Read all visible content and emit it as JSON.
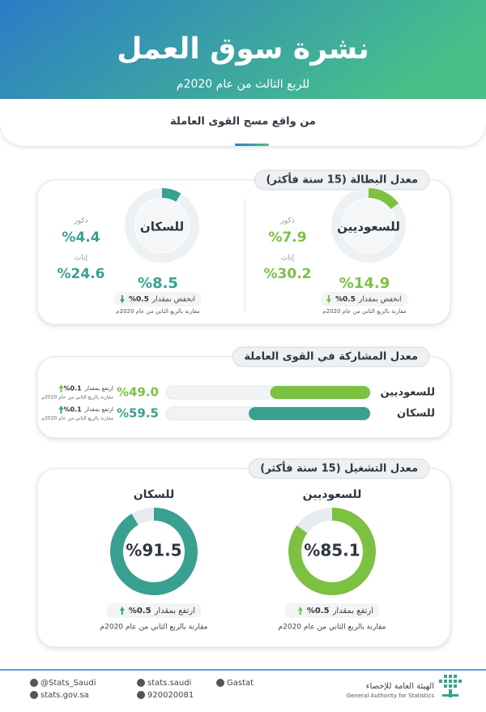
{
  "header": {
    "title": "نشرة سوق العمل",
    "subtitle": "للربع الثالث من عام 2020م",
    "source": "من واقع مسح القوى العاملة"
  },
  "unemployment": {
    "title": "معدل البطالة (15 سنة فأكثر)",
    "xlim": [
      0,
      100
    ],
    "groups": [
      {
        "name": "للسعوديين",
        "color": "#7cc142",
        "rate": {
          "value": 14.9,
          "label": "%14.9"
        },
        "change_text": "انخفض بمقدار",
        "change_value": "%0.5",
        "note": "مقارنة بالربع الثاني من عام 2020م",
        "male_label": "ذكور",
        "male": "%7.9",
        "female_label": "إناث",
        "female": "%30.2"
      },
      {
        "name": "للسكان",
        "color": "#3aa08f",
        "rate": {
          "value": 8.5,
          "label": "%8.5"
        },
        "change_text": "انخفض بمقدار",
        "change_value": "%0.5",
        "note": "مقارنة بالربع الثاني من عام 2020م",
        "male_label": "ذكور",
        "male": "%4.4",
        "female_label": "إناث",
        "female": "%24.6"
      }
    ]
  },
  "participation": {
    "title": "معدل المشاركة في القوى العاملة",
    "xlim": [
      0,
      100
    ],
    "rows": [
      {
        "name": "للسعوديين",
        "color": "#7cc142",
        "rate": {
          "value": 49.0,
          "label": "%49.0"
        },
        "change_text": "ارتفع بمقدار",
        "change_value": "%0.1",
        "note": "مقارنة بالربع الثاني من عام 2020م"
      },
      {
        "name": "للسكان",
        "color": "#3aa08f",
        "rate": {
          "value": 59.5,
          "label": "%59.5"
        },
        "change_text": "ارتفع بمقدار",
        "change_value": "%0.1",
        "note": "مقارنة بالربع الثاني من عام 2020م"
      }
    ]
  },
  "employment": {
    "title": "معدل التشغيل (15 سنة فأكثر)",
    "xlim": [
      0,
      100
    ],
    "groups": [
      {
        "name": "للسعوديين",
        "color": "#7cc142",
        "rate": {
          "value": 85.1,
          "label": "%85.1"
        },
        "change_text": "ارتفع بمقدار",
        "change_value": "%0.5",
        "note": "مقارنة بالربع الثاني من عام 2020م"
      },
      {
        "name": "للسكان",
        "color": "#3aa08f",
        "rate": {
          "value": 91.5,
          "label": "%91.5"
        },
        "change_text": "ارتفع بمقدار",
        "change_value": "%0.5",
        "note": "مقارنة بالربع الثاني من عام 2020م"
      }
    ]
  },
  "footer": {
    "twitter": "@Stats_Saudi",
    "facebook": "stats.saudi",
    "linkedin": "Gastat",
    "website": "stats.gov.sa",
    "phone": "920020081",
    "org_ar": "الهيئة العامة للإحصاء",
    "org_en": "General Authority for Statistics"
  }
}
